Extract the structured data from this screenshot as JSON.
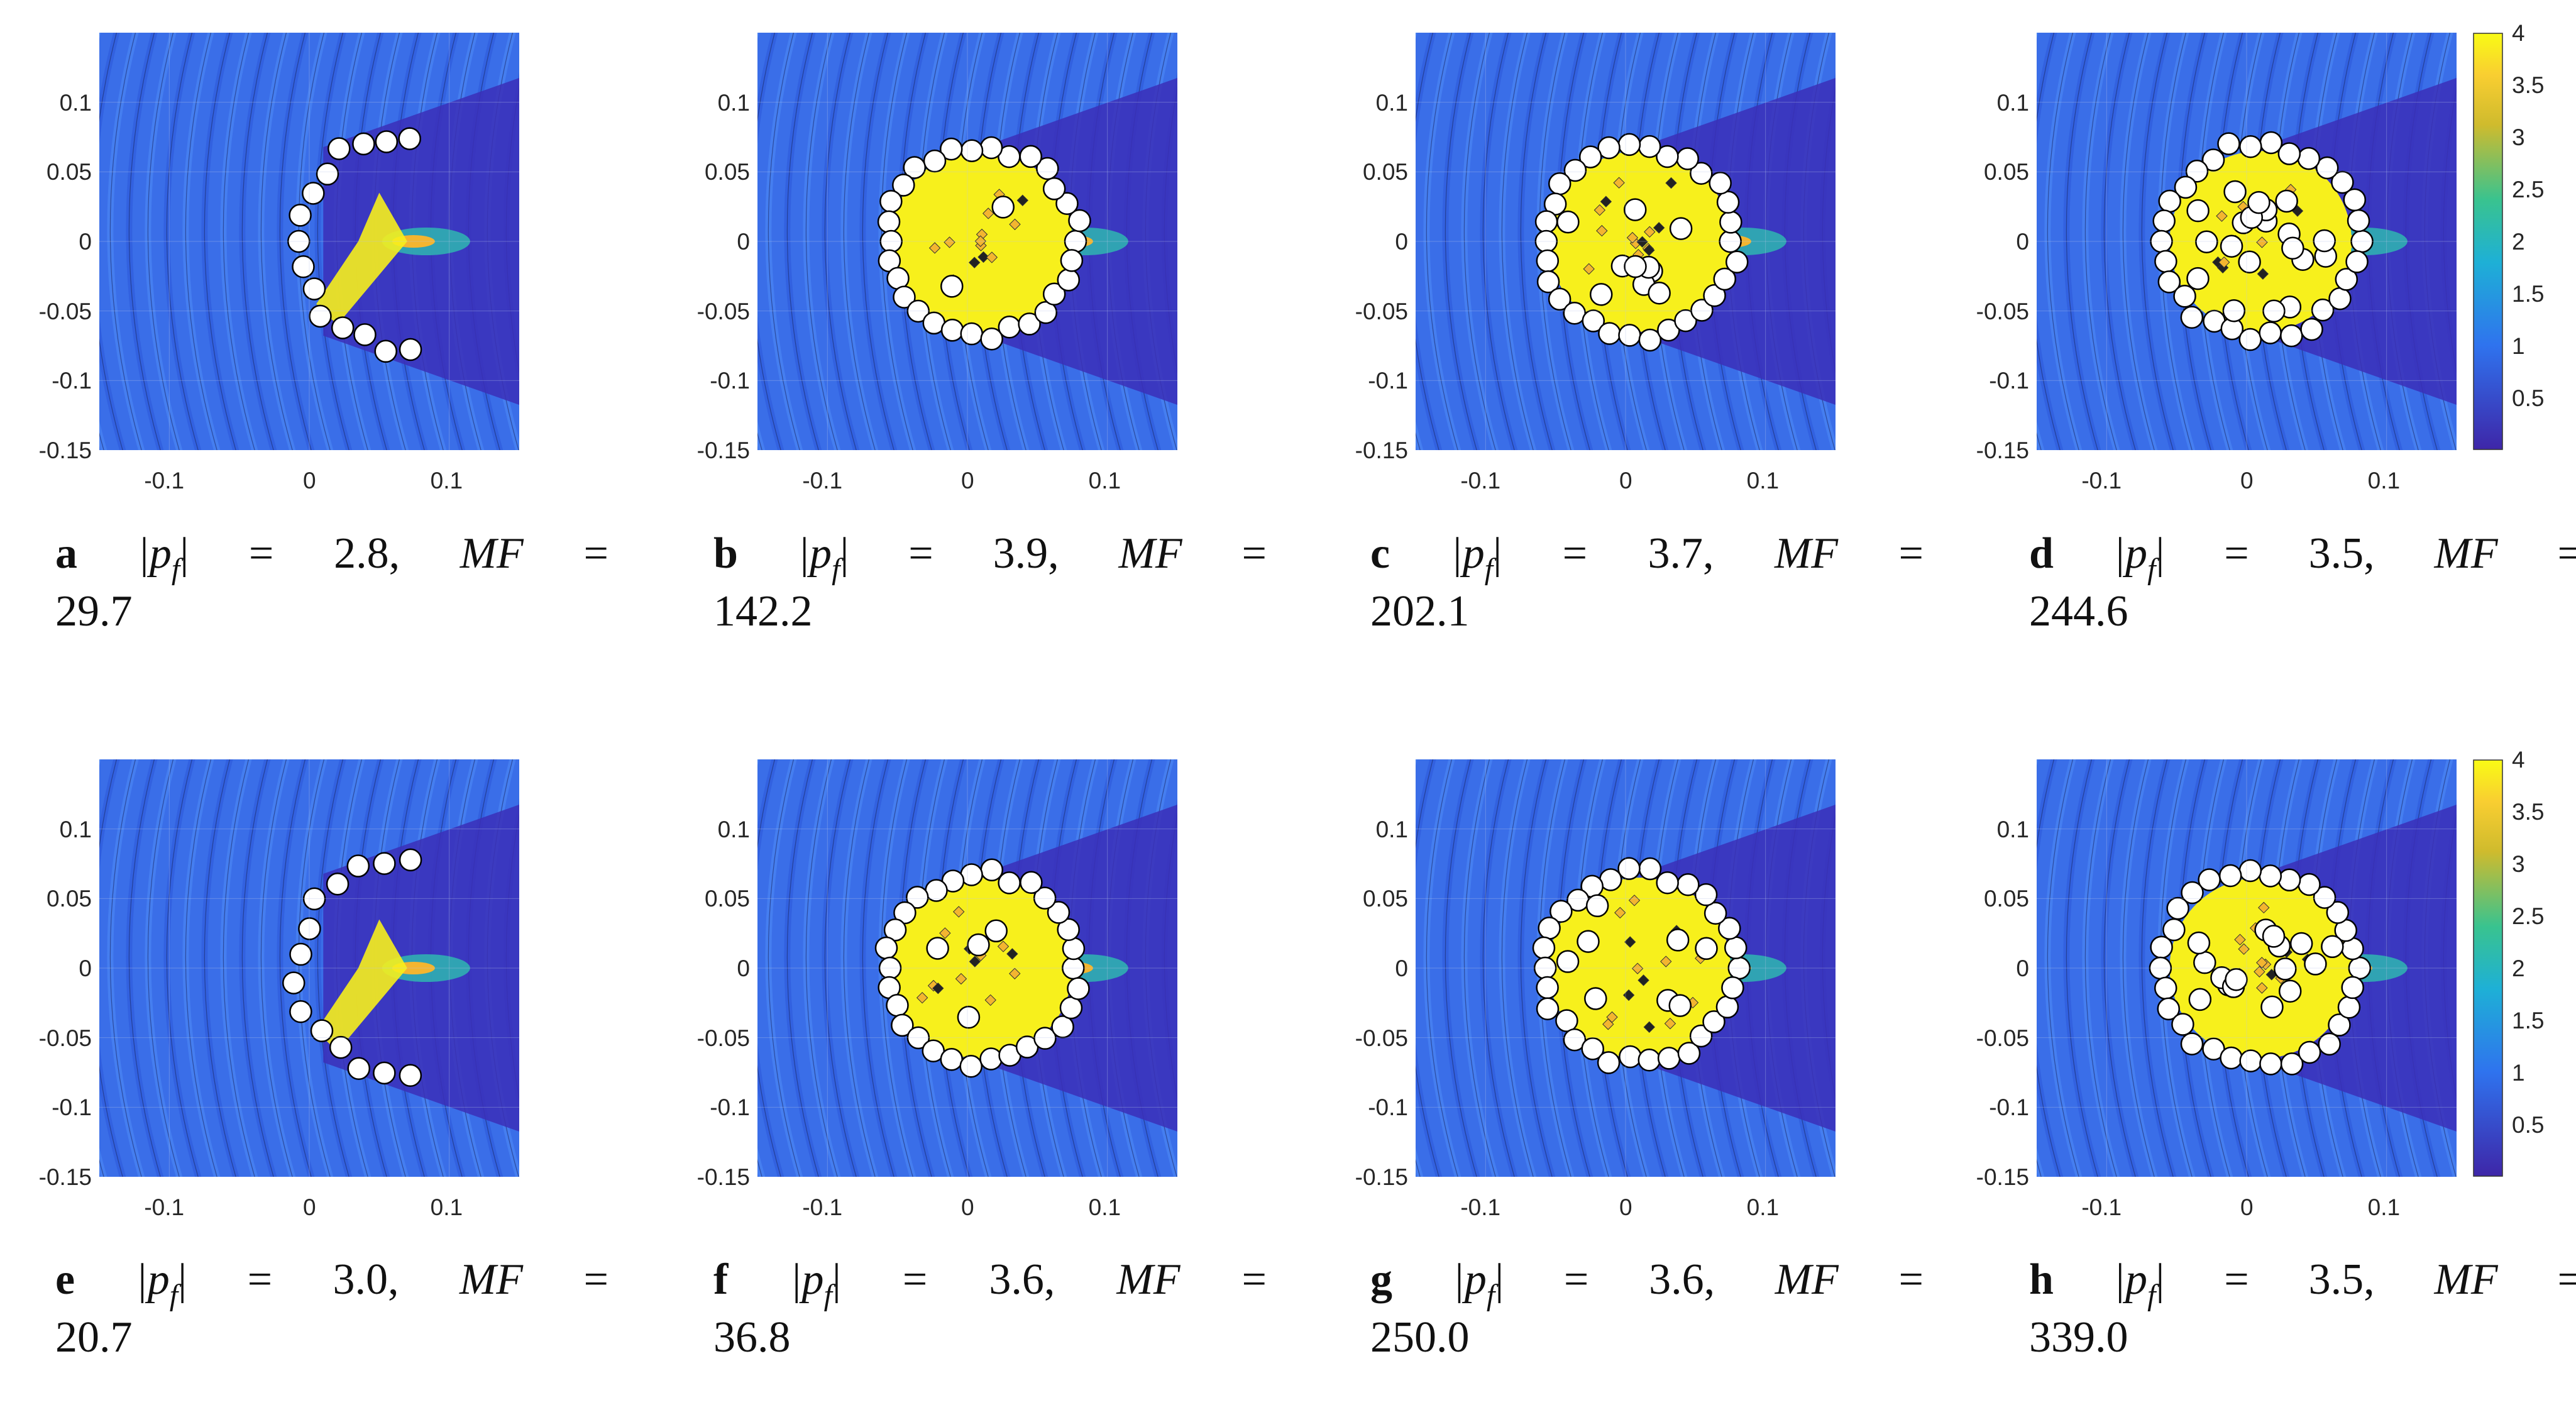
{
  "figure": {
    "panels": [
      {
        "letter": "a",
        "lhs_symbol": "|p",
        "lhs_sub": "f",
        "lhs_close": "|",
        "eq": "=",
        "pf": "2.8,",
        "mf_label": "MF",
        "mf": "29.7"
      },
      {
        "letter": "b",
        "lhs_symbol": "|p",
        "lhs_sub": "f",
        "lhs_close": "|",
        "eq": "=",
        "pf": "3.9,",
        "mf_label": "MF",
        "mf": "142.2"
      },
      {
        "letter": "c",
        "lhs_symbol": "|p",
        "lhs_sub": "f",
        "lhs_close": "|",
        "eq": "=",
        "pf": "3.7,",
        "mf_label": "MF",
        "mf": "202.1"
      },
      {
        "letter": "d",
        "lhs_symbol": "|p",
        "lhs_sub": "f",
        "lhs_close": "|",
        "eq": "=",
        "pf": "3.5,",
        "mf_label": "MF",
        "mf": "244.6"
      },
      {
        "letter": "e",
        "lhs_symbol": "|p",
        "lhs_sub": "f",
        "lhs_close": "|",
        "eq": "=",
        "pf": "3.0,",
        "mf_label": "MF",
        "mf": "20.7"
      },
      {
        "letter": "f",
        "lhs_symbol": "|p",
        "lhs_sub": "f",
        "lhs_close": "|",
        "eq": "=",
        "pf": "3.6,",
        "mf_label": "MF",
        "mf": "36.8"
      },
      {
        "letter": "g",
        "lhs_symbol": "|p",
        "lhs_sub": "f",
        "lhs_close": "|",
        "eq": "=",
        "pf": "3.6,",
        "mf_label": "MF",
        "mf": "250.0"
      },
      {
        "letter": "h",
        "lhs_symbol": "|p",
        "lhs_sub": "f",
        "lhs_close": "|",
        "eq": "=",
        "pf": "3.5,",
        "mf_label": "MF",
        "mf": "339.0"
      }
    ]
  },
  "chart_data": [
    {
      "type": "heatmap",
      "panel": "a",
      "xlim": [
        -0.15,
        0.15
      ],
      "ylim": [
        -0.15,
        0.15
      ],
      "xticks": [
        "-0.1",
        "0",
        "0.1"
      ],
      "yticks": [
        "0.1",
        "0.05",
        "0",
        "-0.05",
        "-0.1",
        "-0.15"
      ],
      "focus": [
        0.07,
        0.0
      ],
      "pf": 2.8,
      "mf": 29.7,
      "cluster": "arc",
      "scatterers": 15
    },
    {
      "type": "heatmap",
      "panel": "b",
      "xlim": [
        -0.15,
        0.15
      ],
      "ylim": [
        -0.15,
        0.15
      ],
      "xticks": [
        "-0.1",
        "0",
        "0.1"
      ],
      "yticks": [
        "0.1",
        "0.05",
        "0",
        "-0.05",
        "-0.1",
        "-0.15"
      ],
      "focus": [
        0.07,
        0.0
      ],
      "pf": 3.9,
      "mf": 142.2,
      "cluster": "ring",
      "scatterers": 32
    },
    {
      "type": "heatmap",
      "panel": "c",
      "xlim": [
        -0.15,
        0.15
      ],
      "ylim": [
        -0.15,
        0.15
      ],
      "xticks": [
        "-0.1",
        "0",
        "0.1"
      ],
      "yticks": [
        "0.1",
        "0.05",
        "0",
        "-0.05",
        "-0.1",
        "-0.15"
      ],
      "focus": [
        0.07,
        0.0
      ],
      "pf": 3.7,
      "mf": 202.1,
      "cluster": "ring",
      "scatterers": 40
    },
    {
      "type": "heatmap",
      "panel": "d",
      "xlim": [
        -0.15,
        0.15
      ],
      "ylim": [
        -0.15,
        0.15
      ],
      "xticks": [
        "-0.1",
        "0",
        "0.1"
      ],
      "yticks": [
        "0.1",
        "0.05",
        "0",
        "-0.05",
        "-0.1",
        "-0.15"
      ],
      "focus": [
        0.07,
        0.0
      ],
      "pf": 3.5,
      "mf": 244.6,
      "cluster": "dense",
      "scatterers": 50,
      "colorbar": {
        "ticks": [
          "4",
          "3.5",
          "3",
          "2.5",
          "2",
          "1.5",
          "1",
          "0.5"
        ],
        "range": [
          0,
          4
        ]
      }
    },
    {
      "type": "heatmap",
      "panel": "e",
      "xlim": [
        -0.15,
        0.15
      ],
      "ylim": [
        -0.15,
        0.15
      ],
      "xticks": [
        "-0.1",
        "0",
        "0.1"
      ],
      "yticks": [
        "0.1",
        "0.05",
        "0",
        "-0.05",
        "-0.1",
        "-0.15"
      ],
      "focus": [
        0.07,
        0.0
      ],
      "pf": 3.0,
      "mf": 20.7,
      "cluster": "arc",
      "scatterers": 14
    },
    {
      "type": "heatmap",
      "panel": "f",
      "xlim": [
        -0.15,
        0.15
      ],
      "ylim": [
        -0.15,
        0.15
      ],
      "xticks": [
        "-0.1",
        "0",
        "0.1"
      ],
      "yticks": [
        "0.1",
        "0.05",
        "0",
        "-0.05",
        "-0.1",
        "-0.15"
      ],
      "focus": [
        0.07,
        0.0
      ],
      "pf": 3.6,
      "mf": 36.8,
      "cluster": "ring",
      "scatterers": 34
    },
    {
      "type": "heatmap",
      "panel": "g",
      "xlim": [
        -0.15,
        0.15
      ],
      "ylim": [
        -0.15,
        0.15
      ],
      "xticks": [
        "-0.1",
        "0",
        "0.1"
      ],
      "yticks": [
        "0.1",
        "0.05",
        "0",
        "-0.05",
        "-0.1",
        "-0.15"
      ],
      "focus": [
        0.07,
        0.0
      ],
      "pf": 3.6,
      "mf": 250.0,
      "cluster": "ring",
      "scatterers": 38
    },
    {
      "type": "heatmap",
      "panel": "h",
      "xlim": [
        -0.15,
        0.15
      ],
      "ylim": [
        -0.15,
        0.15
      ],
      "xticks": [
        "-0.1",
        "0",
        "0.1"
      ],
      "yticks": [
        "0.1",
        "0.05",
        "0",
        "-0.05",
        "-0.1",
        "-0.15"
      ],
      "focus": [
        0.07,
        0.0
      ],
      "pf": 3.5,
      "mf": 339.0,
      "cluster": "dense",
      "scatterers": 46,
      "colorbar": {
        "ticks": [
          "4",
          "3.5",
          "3",
          "2.5",
          "2",
          "1.5",
          "1",
          "0.5"
        ],
        "range": [
          0,
          4
        ]
      }
    }
  ],
  "colors": {
    "background": "#3a6ee8",
    "wave_band": "#2c57d9",
    "wave_band_light": "#4f8cf5",
    "shadow": "#3b2fb8",
    "hot": "#f7f01c",
    "warm": "#f3b530",
    "teal": "#2fb6b0",
    "scatterer_fill": "#ffffff",
    "scatterer_stroke": "#000000"
  }
}
